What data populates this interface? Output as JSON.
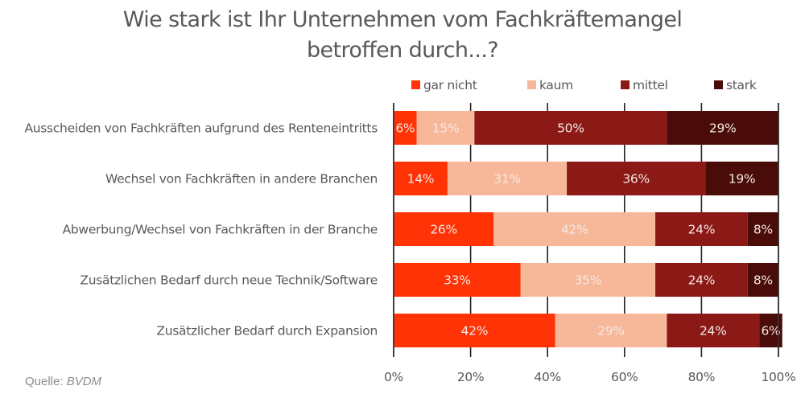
{
  "chart_data": {
    "type": "bar",
    "orientation": "horizontal",
    "stacked": "percent",
    "title": "Wie stark ist Ihr Unternehmen vom Fachkräftemangel betroffen durch...?",
    "title_lines": [
      "Wie stark ist Ihr Unternehmen vom Fachkräftemangel",
      "betroffen durch...?"
    ],
    "xlabel": "",
    "ylabel": "",
    "xlim": [
      0,
      100
    ],
    "x_ticks": [
      0,
      20,
      40,
      60,
      80,
      100
    ],
    "x_tick_labels": [
      "0%",
      "20%",
      "40%",
      "60%",
      "80%",
      "100%"
    ],
    "grid": false,
    "legend_position": "top",
    "categories": [
      "Ausscheiden von Fachkräften aufgrund des Renteneintritts",
      "Wechsel von Fachkräften in andere Branchen",
      "Abwerbung/Wechsel von Fachkräften in der Branche",
      "Zusätzlichen Bedarf durch neue Technik/Software",
      "Zusätzlicher Bedarf durch Expansion"
    ],
    "series": [
      {
        "name": "gar nicht",
        "color": "#ff3305",
        "values": [
          6,
          14,
          26,
          33,
          42
        ]
      },
      {
        "name": "kaum",
        "color": "#f7b89a",
        "values": [
          15,
          31,
          42,
          35,
          29
        ]
      },
      {
        "name": "mittel",
        "color": "#8b1916",
        "values": [
          50,
          36,
          24,
          24,
          24
        ]
      },
      {
        "name": "stark",
        "color": "#4a0c08",
        "values": [
          29,
          19,
          8,
          8,
          6
        ]
      }
    ],
    "value_suffix": "%"
  },
  "source": {
    "prefix": "Quelle: ",
    "name": "BVDM"
  }
}
